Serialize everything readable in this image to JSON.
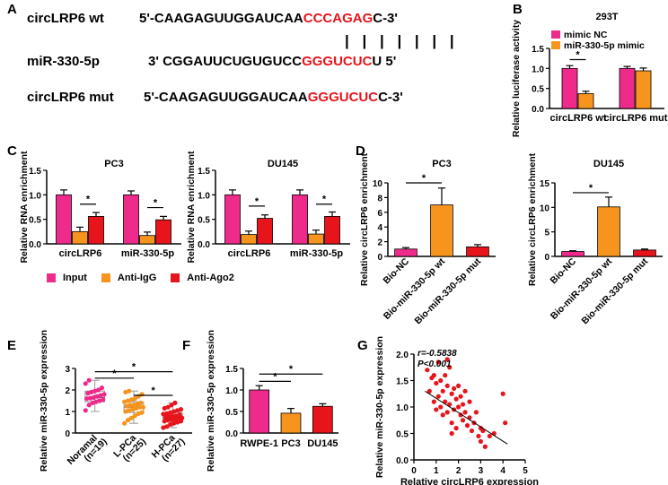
{
  "panels": {
    "a": "A",
    "b": "B",
    "c": "C",
    "d": "D",
    "e": "E",
    "f": "F",
    "g": "G"
  },
  "panel_a": {
    "rows": [
      {
        "label": "circLRP6 wt",
        "prefix": "5'-CAAGAGUUGGAUCAA",
        "highlight": "CCCAGAG",
        "suffix": "C-3'"
      },
      {
        "label": "miR-330-5p",
        "prefix": "3' CGGAUUCUGUGUCC",
        "highlight": "GGGUCUC",
        "suffix": "U 5'"
      },
      {
        "label": "circLRP6 mut",
        "prefix": "5'-CAAGAGUUGGAUCAA",
        "highlight": "GGGUCUC",
        "suffix": "C-3'"
      }
    ],
    "pairing_lines": "| | | | | | |"
  },
  "colors": {
    "pink": "#ee2a8a",
    "orange": "#f7941d",
    "red": "#e8141b",
    "err": "#000000"
  },
  "legend_c": [
    "Input",
    "Anti-IgG",
    "Anti-Ago2"
  ],
  "chart_data": [
    {
      "id": "b",
      "type": "bar",
      "title": "293T",
      "ylabel": "Relative luciferase activity",
      "ylim": [
        0,
        1.5
      ],
      "yticks": [
        "0.0",
        "0.5",
        "1.0",
        "1.5"
      ],
      "categories": [
        "circLRP6 wt",
        "circLRP6 mut"
      ],
      "series": [
        {
          "name": "mimic NC",
          "color": "pink",
          "values": [
            1.0,
            1.0
          ],
          "err": [
            0.07,
            0.05
          ]
        },
        {
          "name": "miR-330-5p mimic",
          "color": "orange",
          "values": [
            0.37,
            0.94
          ],
          "err": [
            0.06,
            0.07
          ]
        }
      ],
      "sig": [
        "*"
      ]
    },
    {
      "id": "c1",
      "type": "bar",
      "title": "PC3",
      "ylabel": "Relative RNA enrichment",
      "ylim": [
        0,
        1.5
      ],
      "yticks": [
        "0.0",
        "0.5",
        "1.0",
        "1.5"
      ],
      "categories": [
        "circLRP6",
        "miR-330-5p"
      ],
      "series": [
        {
          "name": "Input",
          "color": "pink",
          "values": [
            1.0,
            1.0
          ],
          "err": [
            0.1,
            0.08
          ]
        },
        {
          "name": "Anti-IgG",
          "color": "orange",
          "values": [
            0.25,
            0.17
          ],
          "err": [
            0.09,
            0.07
          ]
        },
        {
          "name": "Anti-Ago2",
          "color": "red",
          "values": [
            0.56,
            0.49
          ],
          "err": [
            0.08,
            0.07
          ]
        }
      ],
      "sig": [
        "*",
        "*"
      ]
    },
    {
      "id": "c2",
      "type": "bar",
      "title": "DU145",
      "ylabel": "Relative RNA enrichment",
      "ylim": [
        0,
        1.5
      ],
      "yticks": [
        "0.0",
        "0.5",
        "1.0",
        "1.5"
      ],
      "categories": [
        "circLRP6",
        "miR-330-5p"
      ],
      "series": [
        {
          "name": "Input",
          "color": "pink",
          "values": [
            1.0,
            1.0
          ],
          "err": [
            0.1,
            0.1
          ]
        },
        {
          "name": "Anti-IgG",
          "color": "orange",
          "values": [
            0.19,
            0.2
          ],
          "err": [
            0.07,
            0.08
          ]
        },
        {
          "name": "Anti-Ago2",
          "color": "red",
          "values": [
            0.52,
            0.56
          ],
          "err": [
            0.07,
            0.09
          ]
        }
      ],
      "sig": [
        "*",
        "*"
      ]
    },
    {
      "id": "d1",
      "type": "bar",
      "title": "PC3",
      "ylabel": "Relative circLRP6 enrichment",
      "ylim": [
        0,
        10
      ],
      "yticks": [
        "0",
        "2",
        "4",
        "6",
        "8",
        "10"
      ],
      "categories": [
        "Bio-NC",
        "Bio-miR-330-5p wt",
        "Bio-miR-330-5p mut"
      ],
      "values": [
        1.0,
        7.0,
        1.3
      ],
      "err": [
        0.2,
        2.3,
        0.3
      ],
      "colors": [
        "pink",
        "orange",
        "red"
      ],
      "sig": [
        "*"
      ]
    },
    {
      "id": "d2",
      "type": "bar",
      "title": "DU145",
      "ylabel": "Relative circLRP6 enrichment",
      "ylim": [
        0,
        15
      ],
      "yticks": [
        "0",
        "5",
        "10",
        "15"
      ],
      "categories": [
        "Bio-NC",
        "Bio-miR-330-5p wt",
        "Bio-miR-330-5p mut"
      ],
      "values": [
        1.0,
        10.1,
        1.3
      ],
      "err": [
        0.15,
        2.0,
        0.2
      ],
      "colors": [
        "pink",
        "orange",
        "red"
      ],
      "sig": [
        "*"
      ]
    },
    {
      "id": "e",
      "type": "box",
      "ylabel": "Relative miR-330-5p expression",
      "ylim": [
        0,
        3
      ],
      "yticks": [
        "0",
        "1",
        "2",
        "3"
      ],
      "categories": [
        "Noramal",
        "L-PCa",
        "H-PCa"
      ],
      "subcats": [
        "(n=19)",
        "(n=25)",
        "(n=27)"
      ],
      "boxes": [
        {
          "min": 1.0,
          "q1": 1.45,
          "med": 1.65,
          "q3": 1.95,
          "max": 2.45,
          "color": "pink",
          "points": [
            1.05,
            1.3,
            1.4,
            1.45,
            1.5,
            1.55,
            1.6,
            1.62,
            1.65,
            1.7,
            1.75,
            1.8,
            1.85,
            1.9,
            1.95,
            2.0,
            2.1,
            2.3,
            2.45
          ]
        },
        {
          "min": 0.45,
          "q1": 0.95,
          "med": 1.2,
          "q3": 1.45,
          "max": 1.95,
          "color": "orange",
          "points": [
            0.45,
            0.6,
            0.7,
            0.8,
            0.9,
            0.95,
            1.0,
            1.05,
            1.1,
            1.15,
            1.2,
            1.2,
            1.25,
            1.3,
            1.3,
            1.35,
            1.4,
            1.45,
            1.5,
            1.55,
            1.6,
            1.7,
            1.8,
            1.9,
            1.95
          ]
        },
        {
          "min": 0.25,
          "q1": 0.55,
          "med": 0.72,
          "q3": 0.95,
          "max": 1.4,
          "color": "red",
          "points": [
            0.25,
            0.3,
            0.4,
            0.45,
            0.5,
            0.55,
            0.55,
            0.6,
            0.62,
            0.65,
            0.7,
            0.7,
            0.72,
            0.75,
            0.78,
            0.8,
            0.85,
            0.88,
            0.9,
            0.95,
            1.0,
            1.05,
            1.1,
            1.15,
            1.2,
            1.3,
            1.4
          ]
        }
      ],
      "sig": [
        "*",
        "*",
        "*"
      ]
    },
    {
      "id": "f",
      "type": "bar",
      "ylabel": "Relative miR-330-5p expression",
      "ylim": [
        0,
        1.5
      ],
      "yticks": [
        "0.0",
        "0.5",
        "1.0",
        "1.5"
      ],
      "categories": [
        "RWPE-1",
        "PC3",
        "DU145"
      ],
      "values": [
        1.0,
        0.46,
        0.62
      ],
      "err": [
        0.1,
        0.11,
        0.06
      ],
      "colors": [
        "pink",
        "orange",
        "red"
      ],
      "sig": [
        "*",
        "*"
      ]
    },
    {
      "id": "g",
      "type": "scatter",
      "xlabel": "Relative circLRP6 expression",
      "ylabel": "Relative miR-330-5p expression",
      "xlim": [
        0,
        5
      ],
      "ylim": [
        0,
        2.0
      ],
      "xticks": [
        "0",
        "1",
        "2",
        "3",
        "4",
        "5"
      ],
      "yticks": [
        "0.0",
        "0.5",
        "1.0",
        "1.5",
        "2.0"
      ],
      "stat_r": "r=-0.5838",
      "stat_p": "P<0.001",
      "fit": {
        "x": [
          0.5,
          4.2
        ],
        "y": [
          1.3,
          0.3
        ]
      },
      "x": [
        0.6,
        0.7,
        0.8,
        0.9,
        1.0,
        1.0,
        1.1,
        1.1,
        1.2,
        1.2,
        1.3,
        1.3,
        1.4,
        1.4,
        1.5,
        1.5,
        1.6,
        1.6,
        1.7,
        1.7,
        1.8,
        1.8,
        1.9,
        1.9,
        2.0,
        2.0,
        2.1,
        2.1,
        2.2,
        2.2,
        2.3,
        2.4,
        2.5,
        2.5,
        2.6,
        2.7,
        2.8,
        2.9,
        3.0,
        3.0,
        3.1,
        3.2,
        3.4,
        3.6,
        4.0,
        4.1,
        1.5,
        2.3,
        0.9,
        1.7
      ],
      "y": [
        1.7,
        1.3,
        1.55,
        1.1,
        1.45,
        0.95,
        1.85,
        1.2,
        1.5,
        1.0,
        1.3,
        0.85,
        1.6,
        1.1,
        1.4,
        0.9,
        1.05,
        1.75,
        1.25,
        0.7,
        1.35,
        0.95,
        1.15,
        0.6,
        1.0,
        1.4,
        0.85,
        1.2,
        0.75,
        1.05,
        0.9,
        0.65,
        0.8,
        1.1,
        0.55,
        0.7,
        0.9,
        0.45,
        0.6,
        0.35,
        0.55,
        0.25,
        0.45,
        0.5,
        1.25,
        0.7,
        1.9,
        1.3,
        1.6,
        0.5
      ],
      "color": "red"
    }
  ]
}
